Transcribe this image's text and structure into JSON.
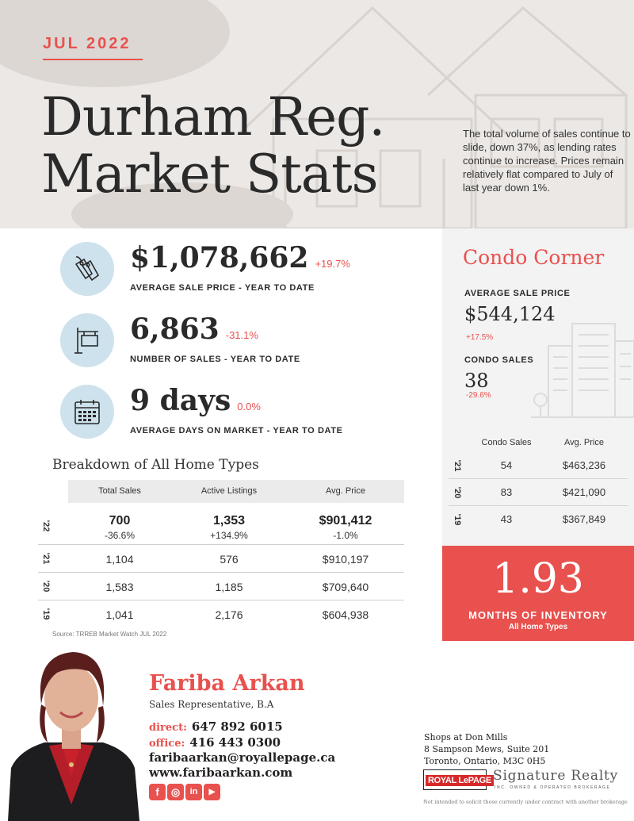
{
  "header": {
    "month": "JUL 2022",
    "title_line1": "Durham Reg.",
    "title_line2": "Market Stats",
    "intro": "The total volume of sales continue to slide, down 37%, as lending rates continue to increase.  Prices remain relatively flat compared to July of last year down 1%."
  },
  "stats": [
    {
      "icon": "price-tag-icon",
      "value": "$1,078,662",
      "change": "+19.7%",
      "label": "AVERAGE SALE PRICE - YEAR TO DATE"
    },
    {
      "icon": "for-sale-sign-icon",
      "value": "6,863",
      "change": "-31.1%",
      "label": "NUMBER OF SALES - YEAR TO DATE"
    },
    {
      "icon": "calendar-icon",
      "value": "9 days",
      "change": "0.0%",
      "label": "AVERAGE DAYS ON MARKET - YEAR TO DATE"
    }
  ],
  "breakdown": {
    "title": "Breakdown of All Home Types",
    "columns": [
      "Total Sales",
      "Active Listings",
      "Avg. Price"
    ],
    "rows": [
      {
        "year": "'22",
        "cells": [
          "700",
          "1,353",
          "$901,412"
        ],
        "changes": [
          "-36.6%",
          "+134.9%",
          "-1.0%"
        ]
      },
      {
        "year": "'21",
        "cells": [
          "1,104",
          "576",
          "$910,197"
        ]
      },
      {
        "year": "'20",
        "cells": [
          "1,583",
          "1,185",
          "$709,640"
        ]
      },
      {
        "year": "'19",
        "cells": [
          "1,041",
          "2,176",
          "$604,938"
        ]
      }
    ],
    "source": "Source: TRREB Market Watch JUL 2022"
  },
  "condo": {
    "title": "Condo Corner",
    "avg_label": "AVERAGE SALE PRICE",
    "avg_value": "$544,124",
    "avg_change": "+17.5%",
    "sales_label": "CONDO SALES",
    "sales_value": "38",
    "sales_change": "-29.6%",
    "columns": [
      "Condo Sales",
      "Avg. Price"
    ],
    "rows": [
      {
        "year": "'21",
        "cells": [
          "54",
          "$463,236"
        ]
      },
      {
        "year": "'20",
        "cells": [
          "83",
          "$421,090"
        ]
      },
      {
        "year": "'19",
        "cells": [
          "43",
          "$367,849"
        ]
      }
    ]
  },
  "inventory": {
    "value": "1.93",
    "label": "MONTHS OF INVENTORY",
    "sub": "All Home Types"
  },
  "agent": {
    "name": "Fariba Arkan",
    "role": "Sales Representative, B.A",
    "direct_label": "direct:",
    "direct": "647 892 6015",
    "office_label": "office:",
    "office": "416 443 0300",
    "email": "faribaarkan@royallepage.ca",
    "website": "www.faribaarkan.com",
    "social": [
      "facebook-icon",
      "instagram-icon",
      "linkedin-icon",
      "youtube-icon"
    ]
  },
  "office": {
    "line1": "Shops at Don Mills",
    "line2": "8 Sampson Mews, Suite 201",
    "line3": "Toronto, Ontario, M3C 0H5"
  },
  "brand": {
    "logo": "ROYAL LePAGE",
    "name": "Signature Realty",
    "sub": "INC. OWNED & OPERATED BROKERAGE",
    "disclaimer": "Not intended to solicit those currently under contract with another brokerage"
  },
  "colors": {
    "accent": "#e8514e",
    "icon_circle": "#cde2ec",
    "panel": "#f3f3f3"
  }
}
